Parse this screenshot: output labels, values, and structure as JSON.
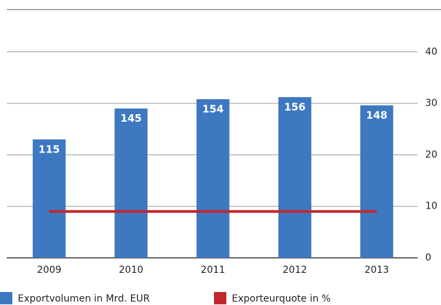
{
  "chart_data": {
    "type": "bar",
    "categories": [
      "2009",
      "2010",
      "2011",
      "2012",
      "2013"
    ],
    "series": [
      {
        "name": "Exportvolumen in Mrd. EUR",
        "type": "bar",
        "color": "#3d78c1",
        "axis": "y",
        "values": [
          115,
          145,
          154,
          156,
          148
        ]
      },
      {
        "name": "Exporteurquote in %",
        "type": "line",
        "color": "#c0282d",
        "axis": "y2",
        "values": [
          9,
          9,
          9,
          9,
          9
        ]
      }
    ],
    "ylim": [
      0,
      200
    ],
    "y2lim": [
      0,
      40
    ],
    "y2ticks": [
      0,
      10,
      20,
      30,
      40
    ],
    "grid": true,
    "legend": "bottom"
  }
}
